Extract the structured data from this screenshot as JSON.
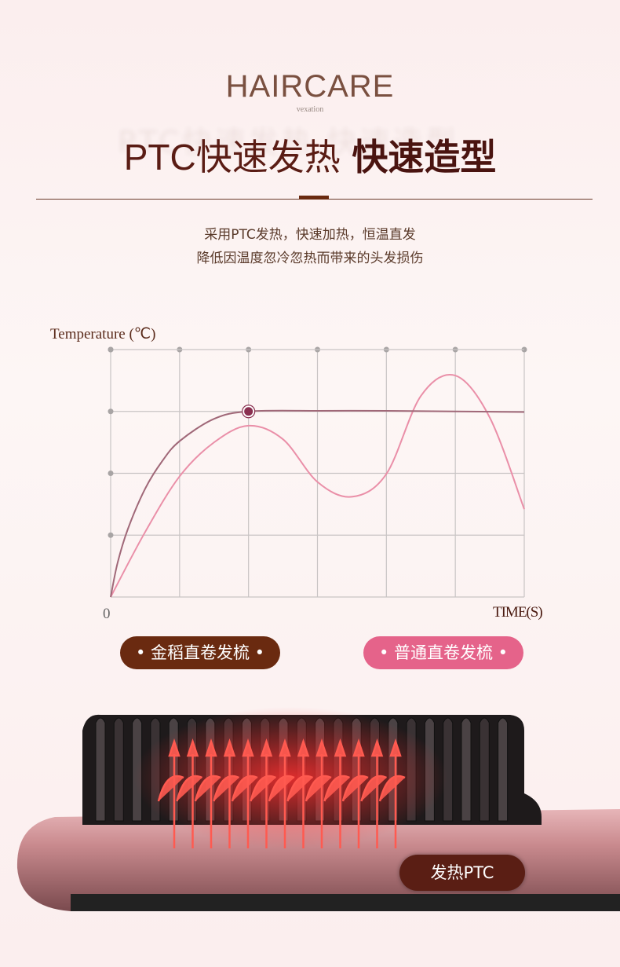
{
  "header": {
    "brand": "HAIRCARE",
    "brand_sub": "vexation",
    "headline_light": "PTC快速发热",
    "headline_bold": "快速造型"
  },
  "description": [
    "采用PTC发热，快速加热，恒温直发",
    "降低因温度忽冷忽热而带来的头发损伤"
  ],
  "chart_data": {
    "type": "line",
    "ylabel": "Temperature (℃)",
    "xlabel": "TIME(S)",
    "x_origin_label": "0",
    "xlim": [
      0,
      6
    ],
    "ylim": [
      0,
      4
    ],
    "grid": true,
    "legend_placement": "bottom",
    "series": [
      {
        "name": "金稻直卷发梳",
        "color": "#a06878",
        "points": [
          [
            0,
            0
          ],
          [
            0.1,
            0.55
          ],
          [
            0.25,
            1.1
          ],
          [
            0.5,
            1.75
          ],
          [
            0.75,
            2.2
          ],
          [
            1,
            2.52
          ],
          [
            1.5,
            2.88
          ],
          [
            2,
            3.0
          ],
          [
            3,
            3.01
          ],
          [
            4,
            3.01
          ],
          [
            5,
            3.0
          ],
          [
            6,
            2.99
          ]
        ],
        "marker": [
          2,
          3
        ]
      },
      {
        "name": "普通直卷发梳",
        "color": "#ea8fa8",
        "points": [
          [
            0,
            0
          ],
          [
            0.5,
            1.05
          ],
          [
            1,
            1.95
          ],
          [
            1.5,
            2.5
          ],
          [
            2,
            2.77
          ],
          [
            2.5,
            2.55
          ],
          [
            3,
            1.86
          ],
          [
            3.5,
            1.62
          ],
          [
            4,
            1.99
          ],
          [
            4.5,
            3.25
          ],
          [
            5,
            3.58
          ],
          [
            5.5,
            2.9
          ],
          [
            6,
            1.42
          ]
        ]
      }
    ]
  },
  "legend": {
    "left": "金稻直卷发梳",
    "right": "普通直卷发梳",
    "left_color": "#6a2a10",
    "right_color": "#e5638a"
  },
  "product": {
    "label": "发热PTC"
  }
}
